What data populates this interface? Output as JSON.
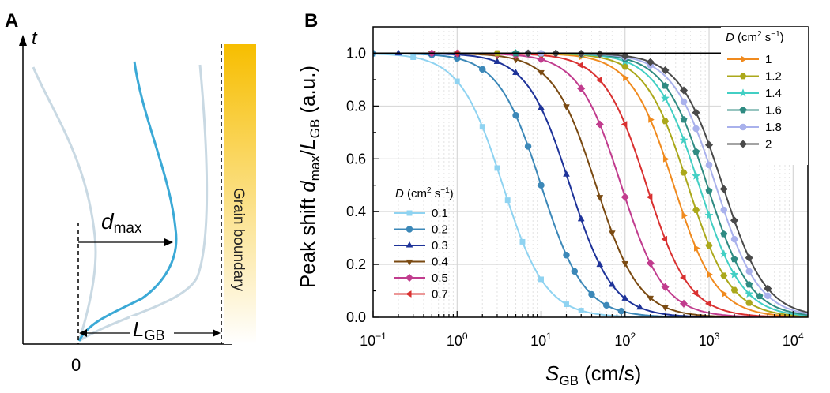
{
  "panel_a": {
    "label": "A",
    "axis_t": "t",
    "origin_label": "0",
    "d_label": "d",
    "d_sub": "max",
    "l_label": "L",
    "l_sub": "GB",
    "gb_label": "Grain boundary",
    "gradient_top_color": "#F7BE00",
    "gradient_bottom_color": "#FFFFFF",
    "main_curve_color": "#3BA9D6",
    "faint_curve_color": "#C9D9E3"
  },
  "panel_b": {
    "label": "B",
    "xlabel_main": "S",
    "xlabel_sub": "GB",
    "xlabel_unit": " (cm/s)",
    "ylabel_1": "Peak shift ",
    "ylabel_d": "d",
    "ylabel_dsub": "max",
    "ylabel_slash": "/",
    "ylabel_l": "L",
    "ylabel_lsub": "GB",
    "ylabel_unit": " (a.u.)",
    "xtick_labels": [
      {
        "base": "10",
        "exp": "−1"
      },
      {
        "base": "10",
        "exp": "0"
      },
      {
        "base": "10",
        "exp": "1"
      },
      {
        "base": "10",
        "exp": "2"
      },
      {
        "base": "10",
        "exp": "3"
      },
      {
        "base": "10",
        "exp": "4"
      }
    ],
    "ytick_labels": [
      "0.0",
      "0.2",
      "0.4",
      "0.6",
      "0.8",
      "1.0"
    ],
    "legend_low_title": {
      "d": "D",
      "unit": " (cm",
      "exp": "2",
      "unit2": " s",
      "exp2": "−1",
      "close": ")"
    },
    "legend_high_title": {
      "d": "D",
      "unit": " (cm",
      "exp": "2",
      "unit2": " s",
      "exp2": "−1",
      "close": ")"
    }
  },
  "chart_data": {
    "type": "line",
    "title": "",
    "xlabel": "S_GB (cm/s)",
    "ylabel": "Peak shift d_max/L_GB (a.u.)",
    "xscale": "log",
    "xlim": [
      0.1,
      15000
    ],
    "ylim": [
      0,
      1.1
    ],
    "grid": true,
    "legends": [
      {
        "title": "D (cm2 s−1)",
        "placement": "center-left",
        "entries": [
          "0.1",
          "0.2",
          "0.3",
          "0.4",
          "0.5",
          "0.7"
        ]
      },
      {
        "title": "D (cm2 s−1)",
        "placement": "top-right",
        "entries": [
          "1",
          "1.2",
          "1.4",
          "1.6",
          "1.8",
          "2"
        ]
      }
    ],
    "series": [
      {
        "name": "0.1",
        "legend": 0,
        "color": "#8FD3F1",
        "marker": "square",
        "half_point": 3.5,
        "points_x": [
          0.1,
          0.3,
          1,
          2,
          3,
          4,
          6,
          10,
          20,
          30
        ]
      },
      {
        "name": "0.2",
        "legend": 0,
        "color": "#3C88B8",
        "marker": "circle",
        "half_point": 10,
        "points_x": [
          0.1,
          0.5,
          1,
          2,
          5,
          7,
          10,
          20,
          25,
          40,
          60,
          90
        ]
      },
      {
        "name": "0.3",
        "legend": 0,
        "color": "#1E3399",
        "marker": "triangle",
        "half_point": 22,
        "points_x": [
          0.2,
          0.5,
          1,
          3,
          5,
          10,
          20,
          30,
          50,
          70,
          100,
          150
        ]
      },
      {
        "name": "0.4",
        "legend": 0,
        "color": "#7A4A12",
        "marker": "tri-down",
        "half_point": 45,
        "points_x": [
          0.5,
          1,
          3,
          5,
          10,
          20,
          50,
          70,
          100,
          200,
          300
        ]
      },
      {
        "name": "0.5",
        "legend": 0,
        "color": "#C13C8E",
        "marker": "diamond",
        "half_point": 90,
        "points_x": [
          0.5,
          1,
          3,
          5,
          10,
          30,
          50,
          100,
          200,
          300,
          500
        ]
      },
      {
        "name": "0.7",
        "legend": 0,
        "color": "#D93030",
        "marker": "tri-left",
        "half_point": 180,
        "points_x": [
          1,
          3,
          5,
          10,
          30,
          50,
          100,
          200,
          300,
          500,
          700,
          1000
        ]
      },
      {
        "name": "1",
        "legend": 1,
        "color": "#F08A1E",
        "marker": "tri-right",
        "half_point": 380,
        "points_x": [
          3,
          5,
          10,
          30,
          100,
          200,
          300,
          500,
          700,
          1000,
          1500
        ]
      },
      {
        "name": "1.2",
        "legend": 1,
        "color": "#ABA81B",
        "marker": "hexagon",
        "half_point": 560,
        "points_x": [
          3,
          10,
          30,
          100,
          300,
          500,
          700,
          1000,
          1500,
          2000,
          3000
        ]
      },
      {
        "name": "1.4",
        "legend": 1,
        "color": "#42CFC4",
        "marker": "star",
        "half_point": 760,
        "points_x": [
          5,
          10,
          30,
          100,
          300,
          500,
          700,
          1000,
          1500,
          2000,
          3000
        ]
      },
      {
        "name": "1.6",
        "legend": 1,
        "color": "#2F8B82",
        "marker": "pentagon",
        "half_point": 950,
        "points_x": [
          5,
          10,
          30,
          100,
          300,
          500,
          700,
          1000,
          1500,
          2000,
          3000,
          4000
        ]
      },
      {
        "name": "1.8",
        "legend": 1,
        "color": "#A9B1EC",
        "marker": "circle",
        "half_point": 1200,
        "points_x": [
          7,
          10,
          30,
          100,
          200,
          500,
          700,
          1000,
          1500,
          2000,
          3000,
          5000
        ]
      },
      {
        "name": "2",
        "legend": 1,
        "color": "#4A4A4A",
        "marker": "diamond",
        "half_point": 1450,
        "points_x": [
          7,
          15,
          30,
          50,
          100,
          200,
          300,
          500,
          700,
          1000,
          1500,
          2000,
          3000,
          5000
        ]
      }
    ]
  }
}
